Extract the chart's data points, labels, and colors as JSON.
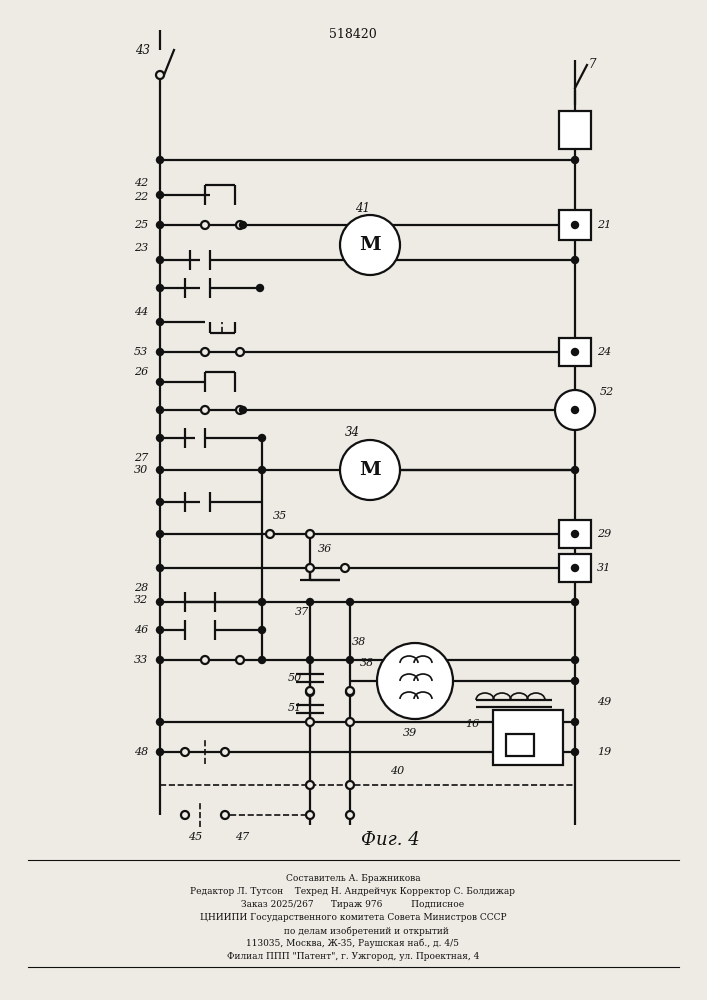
{
  "title": "518420",
  "fig_label": "Фиг. 4",
  "bg": "#eeebe4",
  "lc": "#111111",
  "footer": [
    "Составитель А. Бражникова",
    "Редактор Л. Тутсон    Техред Н. Андрейчук Корректор С. Болдижар",
    "Заказ 2025/267      Тираж 976          Подписное",
    "ЦНИИПИ Государственного комитета Совета Министров СССР",
    "         по делам изобретений и открытий",
    "113035, Москва, Ж-35, Раушская наб., д. 4/5",
    "Филиал ППП \"Патент\", г. Ужгород, ул. Проектная, 4"
  ]
}
